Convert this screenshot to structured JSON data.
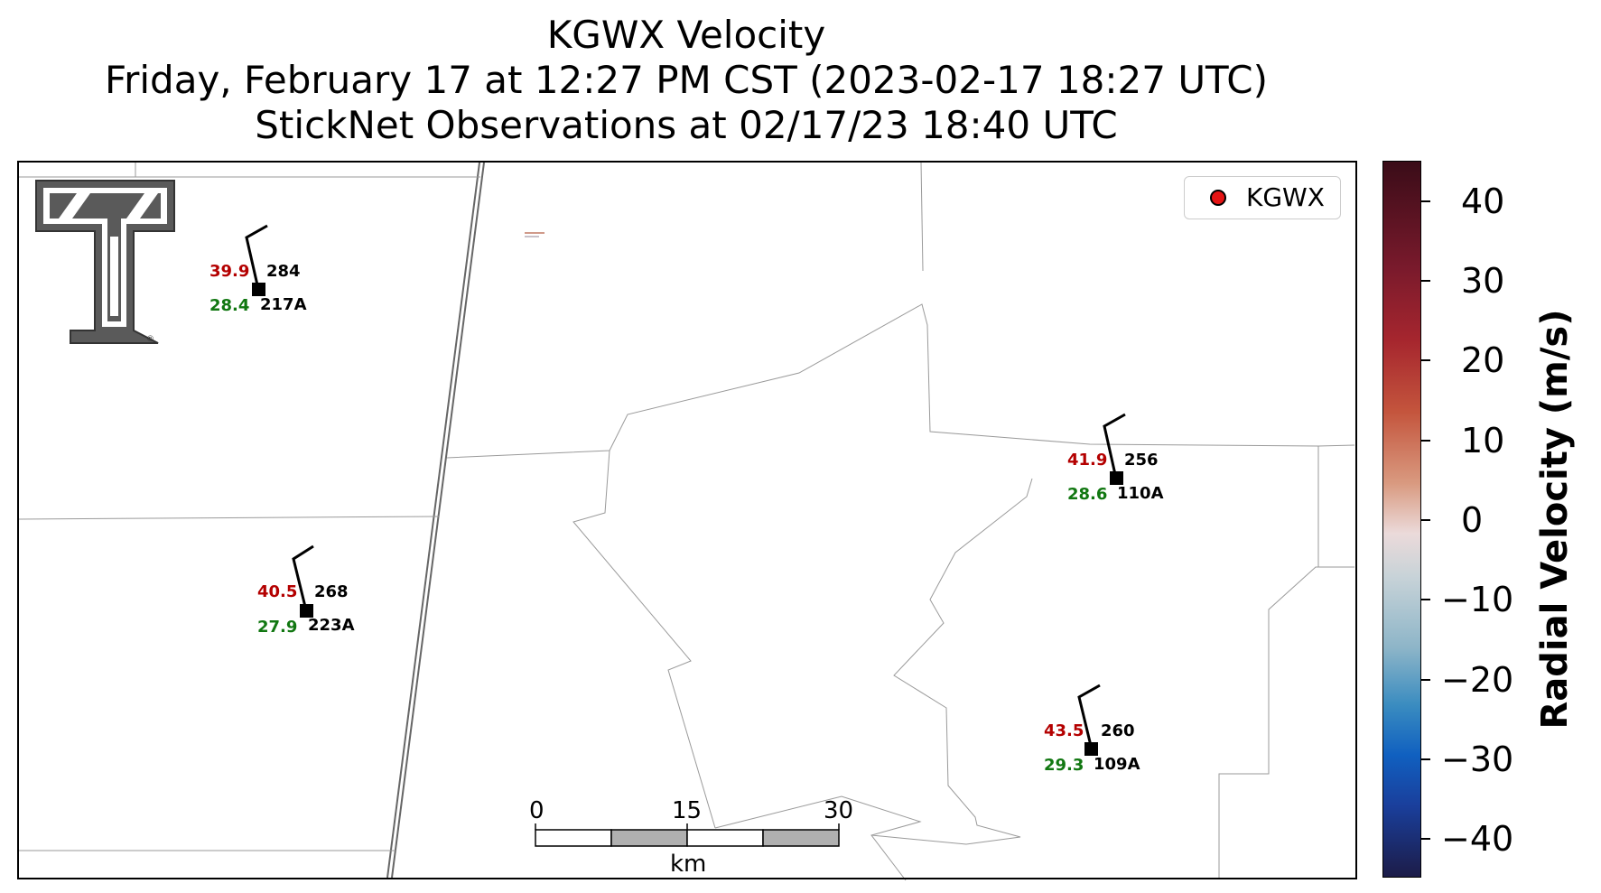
{
  "title": {
    "line1": "KGWX Velocity",
    "line2": "Friday, February 17 at 12:27 PM CST (2023-02-17 18:27 UTC)",
    "line3": "StickNet Observations at 02/17/23 18:40 UTC"
  },
  "legend": {
    "label": "KGWX",
    "marker_color": "#e41414"
  },
  "stations": [
    {
      "id": "217A",
      "value_red": "39.9",
      "value_green": "28.4",
      "direction": "284"
    },
    {
      "id": "223A",
      "value_red": "40.5",
      "value_green": "27.9",
      "direction": "268"
    },
    {
      "id": "110A",
      "value_red": "41.9",
      "value_green": "28.6",
      "direction": "256"
    },
    {
      "id": "109A",
      "value_red": "43.5",
      "value_green": "29.3",
      "direction": "260"
    }
  ],
  "scalebar": {
    "labels": [
      "0",
      "15",
      "30"
    ],
    "unit": "km"
  },
  "colorbar": {
    "title": "Radial Velocity (m/s)",
    "ticks": [
      "40",
      "30",
      "20",
      "10",
      "0",
      "−10",
      "−20",
      "−30",
      "−40"
    ],
    "range": [
      -45,
      45
    ],
    "colors": {
      "max": "#3a0c18",
      "zero": "#ebdada",
      "min": "#1c1c48"
    }
  },
  "logo": {
    "name": "texas-tech-double-t-logo"
  }
}
